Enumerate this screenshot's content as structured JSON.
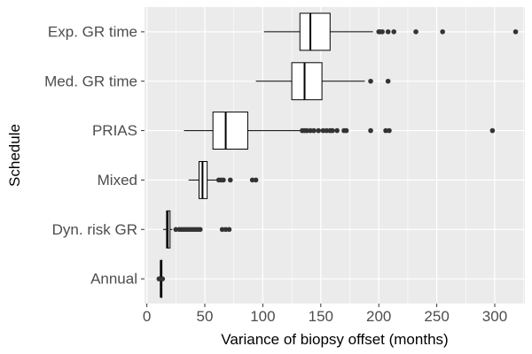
{
  "chart_data": {
    "type": "boxplot",
    "orientation": "horizontal",
    "xlabel": "Variance of biopsy offset (months)",
    "ylabel": "Schedule",
    "xlim": [
      -2,
      326
    ],
    "x_ticks": [
      0,
      50,
      100,
      150,
      200,
      250,
      300
    ],
    "grid": true,
    "background": "#ebebeb",
    "categories": [
      "Exp. GR time",
      "Med. GR time",
      "PRIAS",
      "Mixed",
      "Dyn. risk GR",
      "Annual"
    ],
    "boxes": [
      {
        "category": "Exp. GR time",
        "whisker_low": 101,
        "q1": 132,
        "median": 141,
        "q3": 158,
        "whisker_high": 195,
        "outliers": [
          200,
          201,
          203,
          208,
          213,
          232,
          255,
          318
        ]
      },
      {
        "category": "Med. GR time",
        "whisker_low": 94,
        "q1": 125,
        "median": 136,
        "q3": 151,
        "whisker_high": 188,
        "outliers": [
          193,
          208
        ]
      },
      {
        "category": "PRIAS",
        "whisker_low": 32,
        "q1": 57,
        "median": 68,
        "q3": 87,
        "whisker_high": 132,
        "outliers": [
          134,
          136,
          138,
          141,
          144,
          148,
          152,
          155,
          158,
          160,
          164,
          170,
          172,
          193,
          206,
          209,
          298
        ]
      },
      {
        "category": "Mixed",
        "whisker_low": 36,
        "q1": 45,
        "median": 48,
        "q3": 52,
        "whisker_high": 60,
        "outliers": [
          62,
          64,
          66,
          72,
          91,
          94
        ]
      },
      {
        "category": "Dyn. risk GR",
        "whisker_low": 14,
        "q1": 17,
        "median": 18,
        "q3": 20,
        "whisker_high": 22,
        "outliers": [
          25,
          28,
          30,
          32,
          34,
          36,
          38,
          40,
          42,
          44,
          46,
          65,
          68,
          71
        ]
      },
      {
        "category": "Annual",
        "whisker_low": 10,
        "q1": 12,
        "median": 12,
        "q3": 13,
        "whisker_high": 14,
        "outliers": [
          10.5,
          13.5
        ]
      }
    ],
    "colors": {
      "box_fill": "#ffffff",
      "box_stroke": "#000000",
      "outlier": "#333333",
      "grid_major": "#ffffff"
    }
  }
}
